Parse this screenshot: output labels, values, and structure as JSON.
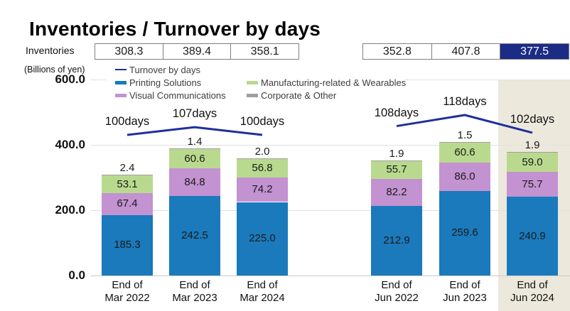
{
  "title": "Inventories / Turnover by days",
  "units_label": "(Billions of yen)",
  "inventories": {
    "label": "Inventories",
    "group1": [
      "308.3",
      "389.4",
      "358.1"
    ],
    "group2": [
      "352.8",
      "407.8",
      "377.5"
    ],
    "highlight_cell_color": "#1c2b85"
  },
  "legend": [
    {
      "label": "Turnover by days",
      "color": "#1f2f9b",
      "type": "line"
    },
    {
      "label": "Printing Solutions",
      "color": "#1a7abc",
      "type": "bar"
    },
    {
      "label": "Visual Communications",
      "color": "#c392d1",
      "type": "bar"
    },
    {
      "label": "Manufacturing-related & Wearables",
      "color": "#b9da8e",
      "type": "bar"
    },
    {
      "label": "Corporate & Other",
      "color": "#a0a0a0",
      "type": "bar"
    }
  ],
  "chart_data": {
    "type": "bar",
    "stacked": true,
    "title": "Inventories / Turnover by days",
    "ylabel": "(Billions of yen)",
    "ylim": [
      0,
      600
    ],
    "yticks": [
      600,
      400,
      200,
      0
    ],
    "grid": true,
    "legend_position": "top",
    "categories": [
      [
        "End of",
        "Mar 2022"
      ],
      [
        "End of",
        "Mar 2023"
      ],
      [
        "End of",
        "Mar 2024"
      ],
      [
        "End of",
        "Jun 2022"
      ],
      [
        "End of",
        "Jun 2023"
      ],
      [
        "End of",
        "Jun 2024"
      ]
    ],
    "series": [
      {
        "name": "Printing Solutions",
        "color": "#1a7abc",
        "values": [
          185.3,
          242.5,
          225.0,
          212.9,
          259.6,
          240.9
        ]
      },
      {
        "name": "Visual Communications",
        "color": "#c392d1",
        "values": [
          67.4,
          84.8,
          74.2,
          82.2,
          86.0,
          75.7
        ]
      },
      {
        "name": "Manufacturing-related & Wearables",
        "color": "#b9da8e",
        "values": [
          53.1,
          60.6,
          56.8,
          55.7,
          60.6,
          59.0
        ]
      },
      {
        "name": "Corporate & Other",
        "color": "#a0a0a0",
        "values": [
          2.4,
          1.4,
          2.0,
          1.9,
          1.5,
          1.9
        ]
      }
    ],
    "line_series": {
      "name": "Turnover by days",
      "color": "#1f2f9b",
      "unit": "days",
      "values": [
        100,
        107,
        100,
        108,
        118,
        102
      ],
      "labels": [
        "100days",
        "107days",
        "100days",
        "108days",
        "118days",
        "102days"
      ]
    },
    "totals": [
      308.2,
      389.3,
      358.0,
      352.7,
      407.7,
      377.5
    ],
    "highlighted_category": "End of Jun 2024",
    "highlight_color": "#ece9dc"
  }
}
